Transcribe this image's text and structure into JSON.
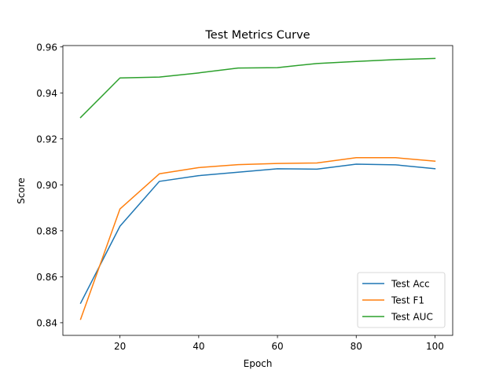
{
  "chart_data": {
    "type": "line",
    "title": "Test Metrics Curve",
    "xlabel": "Epoch",
    "ylabel": "Score",
    "xlim": [
      5.5,
      104.5
    ],
    "ylim": [
      0.8345,
      0.9606
    ],
    "xticks": [
      20,
      40,
      60,
      80,
      100
    ],
    "yticks": [
      0.84,
      0.86,
      0.88,
      0.9,
      0.92,
      0.94,
      0.96
    ],
    "ytick_labels": [
      "0.84",
      "0.86",
      "0.88",
      "0.90",
      "0.92",
      "0.94",
      "0.96"
    ],
    "grid": false,
    "legend_position": "lower-right",
    "x": [
      10,
      20,
      30,
      40,
      50,
      60,
      70,
      80,
      90,
      100
    ],
    "series": [
      {
        "name": "Test Acc",
        "color": "#1f77b4",
        "values": [
          0.8485,
          0.882,
          0.9015,
          0.904,
          0.9055,
          0.907,
          0.9068,
          0.909,
          0.9087,
          0.907
        ]
      },
      {
        "name": "Test F1",
        "color": "#ff7f0e",
        "values": [
          0.8415,
          0.8895,
          0.9048,
          0.9075,
          0.9088,
          0.9093,
          0.9095,
          0.9118,
          0.9118,
          0.9103
        ]
      },
      {
        "name": "Test AUC",
        "color": "#2ca02c",
        "values": [
          0.9293,
          0.9465,
          0.9469,
          0.9487,
          0.9508,
          0.951,
          0.9528,
          0.9537,
          0.9545,
          0.955
        ]
      }
    ]
  }
}
